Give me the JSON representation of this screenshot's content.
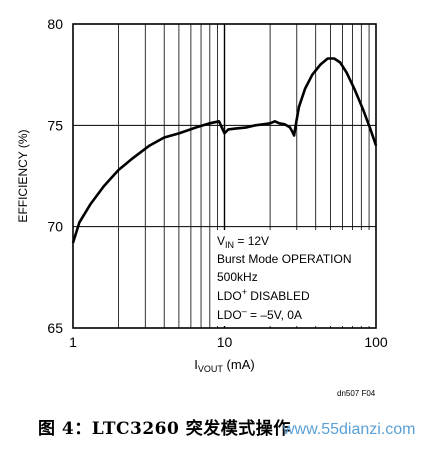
{
  "chart_data": {
    "type": "line",
    "xscale": "log",
    "xlim": [
      1,
      100
    ],
    "ylim": [
      65,
      80
    ],
    "grid": true,
    "xlabel_main": "I",
    "xlabel_sub": "VOUT",
    "xlabel_unit": " (mA)",
    "ylabel": "EFFICIENCY (%)",
    "x_ticks": [
      {
        "value": 1,
        "label": "1"
      },
      {
        "value": 10,
        "label": "10"
      },
      {
        "value": 100,
        "label": "100"
      }
    ],
    "y_ticks": [
      {
        "value": 65,
        "label": "65"
      },
      {
        "value": 70,
        "label": "70"
      },
      {
        "value": 75,
        "label": "75"
      },
      {
        "value": 80,
        "label": "80"
      }
    ],
    "series": [
      {
        "x": [
          1.0,
          1.1,
          1.3,
          1.6,
          2.0,
          2.5,
          3.2,
          4.0,
          5.0,
          6.5,
          8.0,
          9.2,
          9.6,
          10.0,
          10.6,
          12.0,
          14.0,
          16.0,
          18.0,
          20.0,
          21.5,
          23.0,
          25.0,
          27.0,
          28.0,
          28.8,
          29.5,
          31.0,
          34.0,
          38.0,
          43.0,
          48.0,
          53.0,
          58.0,
          64.0,
          72.0,
          82.0,
          92.0,
          100.0
        ],
        "values": [
          69.2,
          70.2,
          71.1,
          72.0,
          72.8,
          73.4,
          74.0,
          74.4,
          74.6,
          74.9,
          75.1,
          75.2,
          74.9,
          74.6,
          74.8,
          74.85,
          74.9,
          75.0,
          75.05,
          75.1,
          75.2,
          75.1,
          75.05,
          74.9,
          74.7,
          74.5,
          75.0,
          75.9,
          76.8,
          77.5,
          78.0,
          78.3,
          78.3,
          78.1,
          77.6,
          76.8,
          75.8,
          74.8,
          74.0
        ]
      }
    ],
    "annotations": {
      "vin_main": "V",
      "vin_sub": "IN",
      "vin_rest": " = 12V",
      "line2": "Burst Mode OPERATION",
      "line3": "500kHz",
      "ldo_plus_main": "LDO",
      "ldo_plus_sup": "+",
      "ldo_plus_rest": " DISABLED",
      "ldo_minus_main": "LDO",
      "ldo_minus_sup": "–",
      "ldo_minus_rest": " = –5V, 0A"
    },
    "figure_id": "dn507 F04"
  },
  "caption": "图 4：LTC3260 突发模式操作",
  "watermark": "www.55dianzi.com",
  "colors": {
    "line": "#000000",
    "grid": "#000000",
    "watermark": "#5aa0d6"
  }
}
